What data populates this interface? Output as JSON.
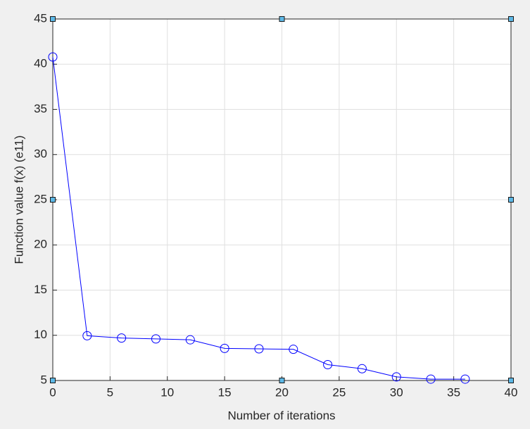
{
  "chart_data": {
    "type": "line",
    "xlabel": "Number of iterations",
    "ylabel": "Function value f(x)  (e11)",
    "x": [
      0,
      3,
      6,
      9,
      12,
      15,
      18,
      21,
      24,
      27,
      30,
      33,
      36
    ],
    "series": [
      {
        "color": "#0000ff",
        "values": [
          40.8,
          9.95,
          9.7,
          9.6,
          9.5,
          8.55,
          8.5,
          8.45,
          6.75,
          6.3,
          5.4,
          5.15,
          5.15
        ]
      }
    ],
    "xlim": [
      0,
      40
    ],
    "xticks": [
      0,
      5,
      10,
      15,
      20,
      25,
      30,
      35,
      40
    ],
    "ylim": [
      5,
      45
    ],
    "yticks": [
      5,
      10,
      15,
      20,
      25,
      30,
      35,
      40,
      45
    ],
    "grid": true
  }
}
